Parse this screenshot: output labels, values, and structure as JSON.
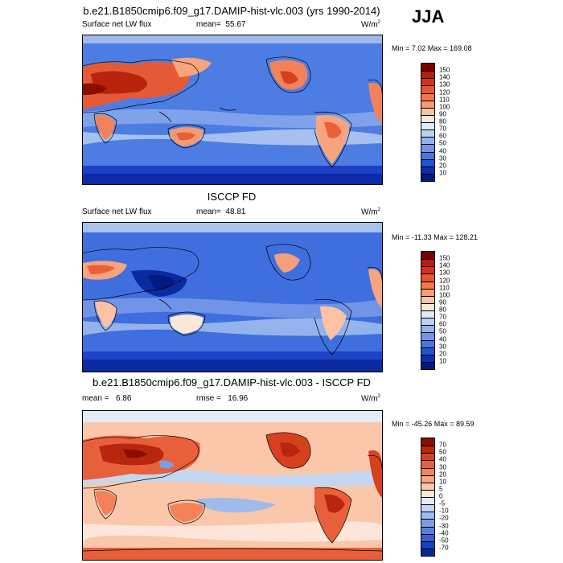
{
  "season": "JJA",
  "panels": [
    {
      "title": "b.e21.B1850cmip6.f09_g17.DAMIP-hist-vlc.003 (yrs 1990-2014)",
      "left_label": "Surface net LW flux",
      "stat_label": "mean=",
      "stat_value": "55.67",
      "units": "W/m",
      "units_sup": "2",
      "minmax": "Min =   7.02 Max = 169.08",
      "colorbar_levels": [
        "150",
        "140",
        "130",
        "120",
        "110",
        "100",
        "90",
        "80",
        "70",
        "60",
        "50",
        "40",
        "30",
        "20",
        "10"
      ],
      "colorbar_colors": [
        "#7a0000",
        "#b71c0c",
        "#d7301f",
        "#e9552f",
        "#f3774d",
        "#f99b72",
        "#fcc2a4",
        "#fbe7d8",
        "#dfe9f7",
        "#bcd0f2",
        "#94b3ec",
        "#6f94e8",
        "#4675e0",
        "#2352d4",
        "#0a2fb4",
        "#001a80"
      ],
      "style": "abs"
    },
    {
      "title": "ISCCP FD",
      "left_label": "Surface net LW flux",
      "stat_label": "mean=",
      "stat_value": "48.81",
      "units": "W/m",
      "units_sup": "2",
      "minmax": "Min = -11.33 Max = 128.21",
      "colorbar_levels": [
        "150",
        "140",
        "130",
        "120",
        "110",
        "100",
        "90",
        "80",
        "70",
        "60",
        "50",
        "40",
        "30",
        "20",
        "10"
      ],
      "colorbar_colors": [
        "#7a0000",
        "#b71c0c",
        "#d7301f",
        "#e9552f",
        "#f3774d",
        "#f99b72",
        "#fcc2a4",
        "#fbe7d8",
        "#dfe9f7",
        "#bcd0f2",
        "#94b3ec",
        "#6f94e8",
        "#4675e0",
        "#2352d4",
        "#0a2fb4",
        "#001a80"
      ],
      "style": "abs"
    },
    {
      "title": "b.e21.B1850cmip6.f09_g17.DAMIP-hist-vlc.003 - ISCCP FD",
      "left_label": "mean =",
      "left_value": "6.86",
      "stat_label": "rmse =",
      "stat_value": "16.96",
      "units": "W/m",
      "units_sup": "2",
      "minmax": "Min = -45.26 Max =  89.59",
      "colorbar_levels": [
        "70",
        "50",
        "40",
        "30",
        "20",
        "10",
        "5",
        "0",
        "-5",
        "-10",
        "-20",
        "-30",
        "-40",
        "-50",
        "-70"
      ],
      "colorbar_colors": [
        "#8a0e00",
        "#b8260f",
        "#d6401f",
        "#e8603a",
        "#f3825a",
        "#f8a47f",
        "#fbc7ab",
        "#fde6d9",
        "#e3ecf8",
        "#c4d6f1",
        "#9fbbec",
        "#7b9ee6",
        "#5781de",
        "#3461d3",
        "#1742bf",
        "#08289a"
      ],
      "style": "diff"
    }
  ]
}
